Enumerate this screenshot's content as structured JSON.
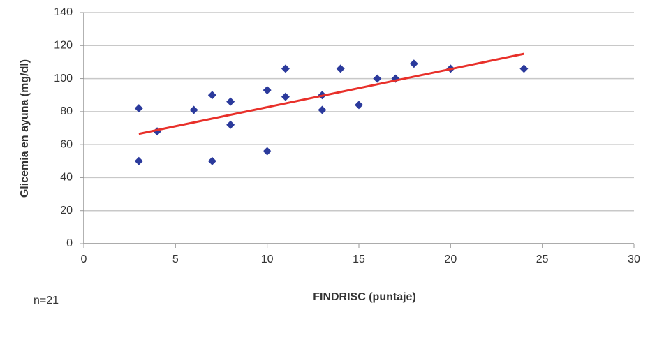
{
  "chart_data": {
    "type": "scatter",
    "y_label": "Glicemia en ayuna (mg/dl)",
    "x_label": "FINDRISC (puntaje)",
    "annotation": "n=21",
    "x": [
      3,
      3,
      4,
      6,
      7,
      7,
      8,
      8,
      10,
      10,
      11,
      11,
      13,
      13,
      14,
      15,
      16,
      17,
      18,
      20,
      24
    ],
    "series": [
      {
        "color": "#2b3a9c",
        "values": [
          82,
          50,
          68,
          81,
          90,
          50,
          86,
          72,
          93,
          56,
          106,
          89,
          90,
          81,
          106,
          84,
          100,
          100,
          109,
          106,
          106
        ]
      }
    ],
    "trendline": {
      "x": [
        3,
        24
      ],
      "y": [
        66.5,
        115
      ],
      "color": "#e8302a"
    },
    "xlim": [
      0,
      30
    ],
    "xticks": [
      0,
      5,
      10,
      15,
      20,
      25,
      30
    ],
    "ylim": [
      0,
      140
    ],
    "yticks": [
      0,
      20,
      40,
      60,
      80,
      100,
      120,
      140
    ],
    "grid": true
  }
}
